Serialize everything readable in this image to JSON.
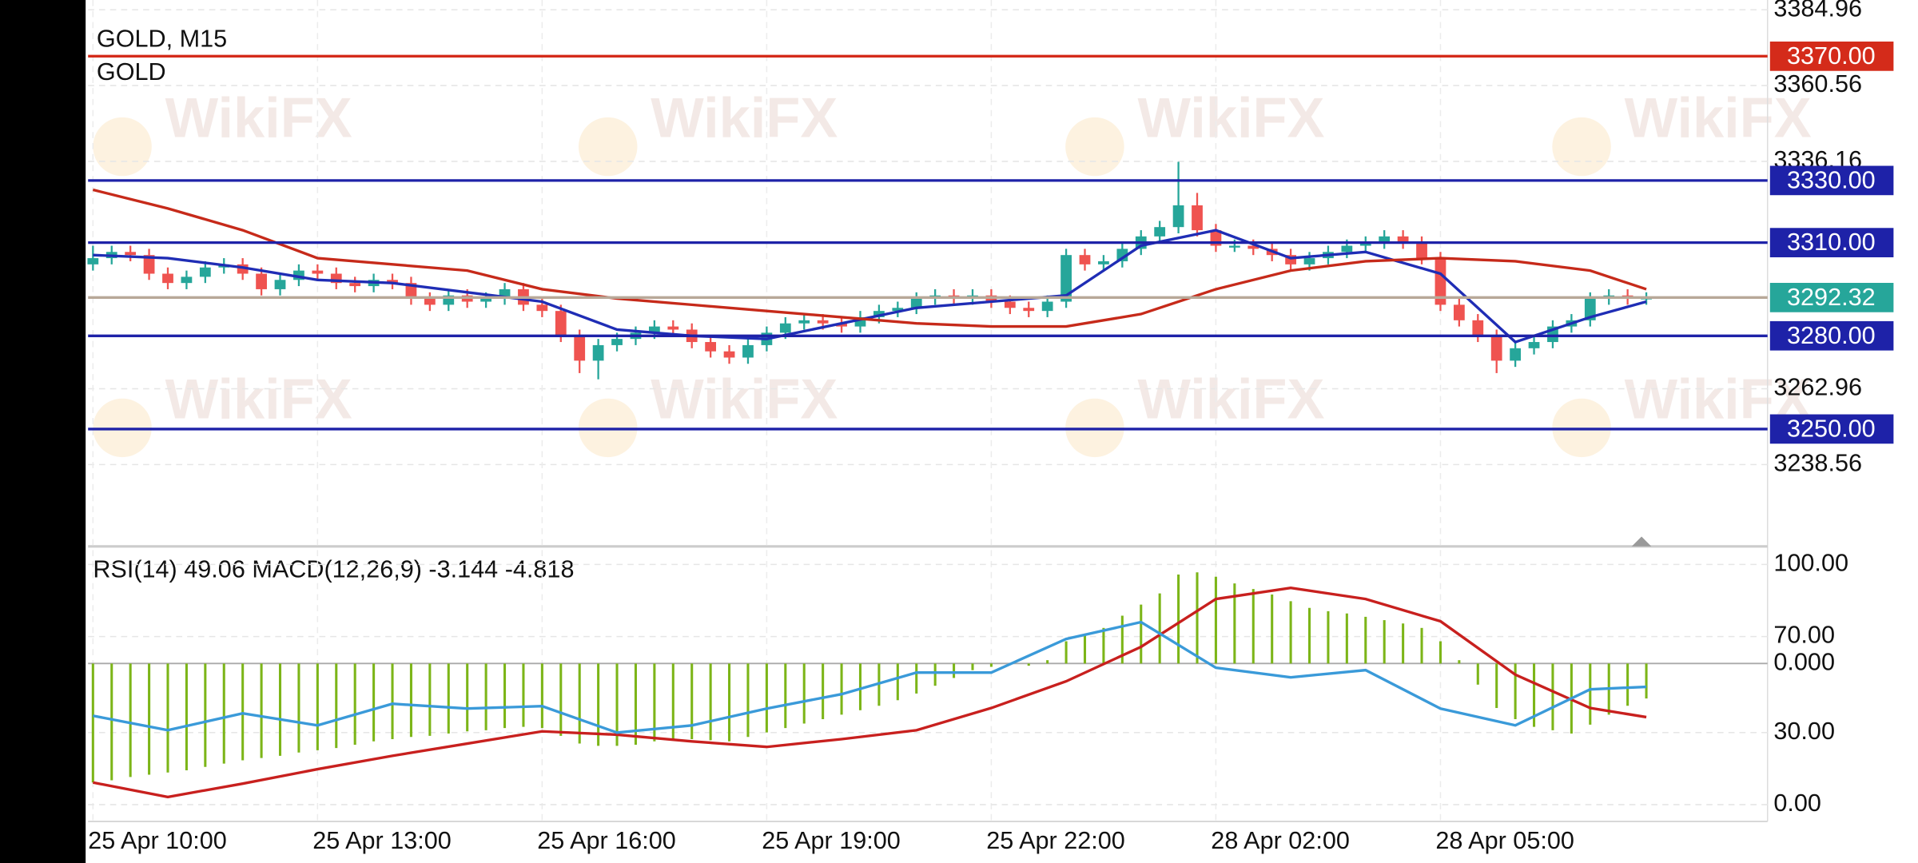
{
  "watermark": "WikiFX",
  "chart_data": [
    {
      "type": "candlestick",
      "title": "GOLD, M15",
      "subtitle": "GOLD",
      "categories": [
        "25 Apr 10:00",
        null,
        null,
        null,
        null,
        null,
        null,
        null,
        null,
        null,
        null,
        null,
        "25 Apr 13:00",
        null,
        null,
        null,
        null,
        null,
        null,
        null,
        null,
        null,
        null,
        null,
        "25 Apr 16:00",
        null,
        null,
        null,
        null,
        null,
        null,
        null,
        null,
        null,
        null,
        null,
        "25 Apr 19:00",
        null,
        null,
        null,
        null,
        null,
        null,
        null,
        null,
        null,
        null,
        null,
        "25 Apr 22:00",
        null,
        null,
        null,
        null,
        null,
        null,
        null,
        null,
        null,
        null,
        null,
        "28 Apr 02:00",
        null,
        null,
        null,
        null,
        null,
        null,
        null,
        null,
        null,
        null,
        null,
        "28 Apr 05:00",
        null,
        null,
        null,
        null,
        null,
        null,
        null,
        null,
        null,
        null,
        null
      ],
      "candles": [
        [
          3303,
          3309,
          3301,
          3305
        ],
        [
          3305,
          3309,
          3303,
          3307
        ],
        [
          3307,
          3309,
          3304,
          3306
        ],
        [
          3306,
          3308,
          3298,
          3300
        ],
        [
          3300,
          3302,
          3295,
          3297
        ],
        [
          3297,
          3301,
          3295,
          3299
        ],
        [
          3299,
          3304,
          3297,
          3302
        ],
        [
          3302,
          3305,
          3300,
          3303
        ],
        [
          3303,
          3305,
          3298,
          3300
        ],
        [
          3300,
          3302,
          3293,
          3295
        ],
        [
          3295,
          3300,
          3293,
          3298
        ],
        [
          3298,
          3303,
          3296,
          3301
        ],
        [
          3301,
          3303,
          3298,
          3300
        ],
        [
          3300,
          3302,
          3295,
          3297
        ],
        [
          3297,
          3299,
          3294,
          3296
        ],
        [
          3296,
          3300,
          3294,
          3298
        ],
        [
          3298,
          3300,
          3295,
          3297
        ],
        [
          3297,
          3299,
          3290,
          3292
        ],
        [
          3292,
          3294,
          3288,
          3290
        ],
        [
          3290,
          3295,
          3288,
          3293
        ],
        [
          3293,
          3295,
          3289,
          3291
        ],
        [
          3291,
          3294,
          3289,
          3292
        ],
        [
          3292,
          3297,
          3290,
          3295
        ],
        [
          3295,
          3297,
          3288,
          3290
        ],
        [
          3290,
          3292,
          3286,
          3288
        ],
        [
          3288,
          3290,
          3278,
          3280
        ],
        [
          3280,
          3282,
          3268,
          3272
        ],
        [
          3272,
          3279,
          3266,
          3277
        ],
        [
          3277,
          3281,
          3275,
          3279
        ],
        [
          3279,
          3283,
          3277,
          3281
        ],
        [
          3281,
          3285,
          3279,
          3283
        ],
        [
          3283,
          3285,
          3280,
          3282
        ],
        [
          3282,
          3284,
          3276,
          3278
        ],
        [
          3278,
          3280,
          3273,
          3275
        ],
        [
          3275,
          3277,
          3271,
          3273
        ],
        [
          3273,
          3279,
          3271,
          3277
        ],
        [
          3277,
          3283,
          3275,
          3281
        ],
        [
          3281,
          3286,
          3279,
          3284
        ],
        [
          3284,
          3287,
          3282,
          3285
        ],
        [
          3285,
          3287,
          3282,
          3284
        ],
        [
          3284,
          3286,
          3281,
          3283
        ],
        [
          3283,
          3288,
          3281,
          3286
        ],
        [
          3286,
          3290,
          3284,
          3288
        ],
        [
          3288,
          3291,
          3286,
          3289
        ],
        [
          3289,
          3294,
          3287,
          3292
        ],
        [
          3292,
          3295,
          3290,
          3293
        ],
        [
          3293,
          3295,
          3290,
          3292
        ],
        [
          3292,
          3295,
          3290,
          3293
        ],
        [
          3293,
          3295,
          3289,
          3291
        ],
        [
          3291,
          3293,
          3287,
          3289
        ],
        [
          3289,
          3291,
          3286,
          3288
        ],
        [
          3288,
          3293,
          3286,
          3291
        ],
        [
          3291,
          3308,
          3289,
          3306
        ],
        [
          3306,
          3308,
          3301,
          3303
        ],
        [
          3303,
          3306,
          3301,
          3304
        ],
        [
          3304,
          3310,
          3302,
          3308
        ],
        [
          3308,
          3314,
          3306,
          3312
        ],
        [
          3312,
          3317,
          3310,
          3315
        ],
        [
          3315,
          3336,
          3313,
          3322
        ],
        [
          3322,
          3326,
          3312,
          3314
        ],
        [
          3314,
          3316,
          3307,
          3309
        ],
        [
          3309,
          3311,
          3307,
          3309
        ],
        [
          3309,
          3311,
          3306,
          3308
        ],
        [
          3308,
          3310,
          3304,
          3306
        ],
        [
          3306,
          3308,
          3301,
          3303
        ],
        [
          3303,
          3307,
          3301,
          3305
        ],
        [
          3305,
          3309,
          3303,
          3307
        ],
        [
          3307,
          3311,
          3305,
          3309
        ],
        [
          3309,
          3312,
          3307,
          3310
        ],
        [
          3310,
          3314,
          3308,
          3312
        ],
        [
          3312,
          3314,
          3308,
          3310
        ],
        [
          3310,
          3312,
          3303,
          3305
        ],
        [
          3305,
          3307,
          3288,
          3290
        ],
        [
          3290,
          3292,
          3283,
          3285
        ],
        [
          3285,
          3287,
          3278,
          3280
        ],
        [
          3280,
          3282,
          3268,
          3272
        ],
        [
          3272,
          3278,
          3270,
          3276
        ],
        [
          3276,
          3280,
          3274,
          3278
        ],
        [
          3278,
          3285,
          3276,
          3283
        ],
        [
          3283,
          3287,
          3281,
          3285
        ],
        [
          3285,
          3294,
          3283,
          3292
        ],
        [
          3292,
          3295,
          3290,
          3293
        ],
        [
          3293,
          3295,
          3290,
          3292
        ],
        [
          3292,
          3294,
          3290,
          3292.32
        ]
      ],
      "up_color": "#26a69a",
      "down_color": "#ef5350",
      "ylim": [
        3213.0,
        3388.1
      ],
      "yticks": [
        3384.96,
        3360.56,
        3336.16,
        3262.96,
        3238.56
      ],
      "grid": true,
      "moving_averages": [
        {
          "color": "#1f2db5",
          "index": [
            0,
            4,
            8,
            12,
            16,
            20,
            24,
            28,
            32,
            36,
            40,
            44,
            48,
            52,
            56,
            60,
            64,
            68,
            72,
            76,
            80,
            83
          ],
          "values": [
            3306,
            3305,
            3302,
            3298,
            3297,
            3294,
            3291,
            3282,
            3280,
            3279,
            3284,
            3289,
            3291,
            3293,
            3309,
            3314,
            3305,
            3307,
            3300,
            3278,
            3286,
            3291
          ]
        },
        {
          "color": "#c62a1a",
          "index": [
            0,
            4,
            8,
            12,
            16,
            20,
            24,
            28,
            32,
            36,
            40,
            44,
            48,
            52,
            56,
            60,
            64,
            68,
            72,
            76,
            80,
            83
          ],
          "values": [
            3327,
            3321,
            3314,
            3305,
            3303,
            3301,
            3295,
            3292,
            3290,
            3288,
            3286,
            3284,
            3283,
            3283,
            3287,
            3295,
            3301,
            3304,
            3305,
            3304,
            3301,
            3295
          ]
        }
      ],
      "levels": [
        {
          "value": 3370,
          "label": "3370.00",
          "color": "#d42b1a"
        },
        {
          "value": 3330,
          "label": "3330.00",
          "color": "#1e22a8"
        },
        {
          "value": 3310,
          "label": "3310.00",
          "color": "#1e22a8"
        },
        {
          "value": 3292.32,
          "label": "3292.32",
          "color": "#26a69a",
          "line_color": "#b8a898"
        },
        {
          "value": 3280,
          "label": "3280.00",
          "color": "#1e22a8"
        },
        {
          "value": 3250,
          "label": "3250.00",
          "color": "#1e22a8"
        }
      ]
    },
    {
      "type": "oscillator",
      "title": "RSI(14) 49.06 MACD(12,26,9) -3.144 -4.818",
      "ylim": [
        -7,
        106
      ],
      "yticks": [
        {
          "value": 100,
          "label": "100.00"
        },
        {
          "value": 70,
          "label": "70.00"
        },
        {
          "value": 30,
          "label": "30.00"
        },
        {
          "value": 0,
          "label": "0.00"
        }
      ],
      "y2lim": [
        -14.2,
        10.2
      ],
      "y2ticks": [
        {
          "value": 0,
          "label": "0.000"
        }
      ],
      "series": [
        {
          "type": "bar",
          "axis": "y2",
          "color": "#7cb518",
          "values": [
            -10.7,
            -10.5,
            -10.2,
            -10,
            -9.8,
            -9.6,
            -9.3,
            -9.0,
            -8.7,
            -8.5,
            -8.3,
            -8.0,
            -7.8,
            -7.6,
            -7.3,
            -7.0,
            -6.8,
            -6.6,
            -6.5,
            -6.3,
            -6.1,
            -6.0,
            -5.8,
            -5.7,
            -5.8,
            -6.5,
            -7.2,
            -7.4,
            -7.4,
            -7.3,
            -7.0,
            -6.8,
            -6.8,
            -6.9,
            -7.0,
            -6.6,
            -6.2,
            -5.8,
            -5.4,
            -5.0,
            -4.6,
            -4.2,
            -3.8,
            -3.3,
            -2.7,
            -2.0,
            -1.3,
            -0.6,
            -0.3,
            -0.1,
            -0.2,
            0.3,
            2.0,
            2.6,
            3.2,
            4.3,
            5.3,
            6.3,
            8.0,
            8.2,
            7.8,
            7.2,
            6.7,
            6.2,
            5.6,
            5.0,
            4.7,
            4.5,
            4.2,
            3.9,
            3.6,
            3.2,
            2.0,
            0.3,
            -1.9,
            -4.0,
            -5.0,
            -5.7,
            -6.0,
            -6.3,
            -5.5,
            -4.6,
            -3.8,
            -3.144
          ]
        },
        {
          "type": "line",
          "axis": "y2",
          "color": "#c8201e",
          "index": [
            0,
            4,
            8,
            12,
            16,
            20,
            24,
            28,
            32,
            36,
            40,
            44,
            48,
            52,
            56,
            60,
            64,
            68,
            72,
            76,
            80,
            83
          ],
          "values": [
            -10.7,
            -12.0,
            -10.8,
            -9.5,
            -8.3,
            -7.2,
            -6.1,
            -6.4,
            -7.0,
            -7.5,
            -6.8,
            -6.0,
            -4.0,
            -1.6,
            1.5,
            5.8,
            6.8,
            5.8,
            3.8,
            -1.0,
            -4.0,
            -4.818
          ]
        },
        {
          "type": "line",
          "color": "#3a9ad9",
          "index": [
            0,
            4,
            8,
            12,
            16,
            20,
            24,
            28,
            32,
            36,
            40,
            44,
            48,
            52,
            56,
            60,
            64,
            68,
            72,
            76,
            80,
            83
          ],
          "values": [
            37,
            31,
            38,
            33,
            42,
            40,
            41,
            30,
            33,
            40,
            46,
            55,
            55,
            69,
            76,
            57,
            53,
            56,
            40,
            33,
            48,
            49.06
          ]
        }
      ]
    }
  ]
}
